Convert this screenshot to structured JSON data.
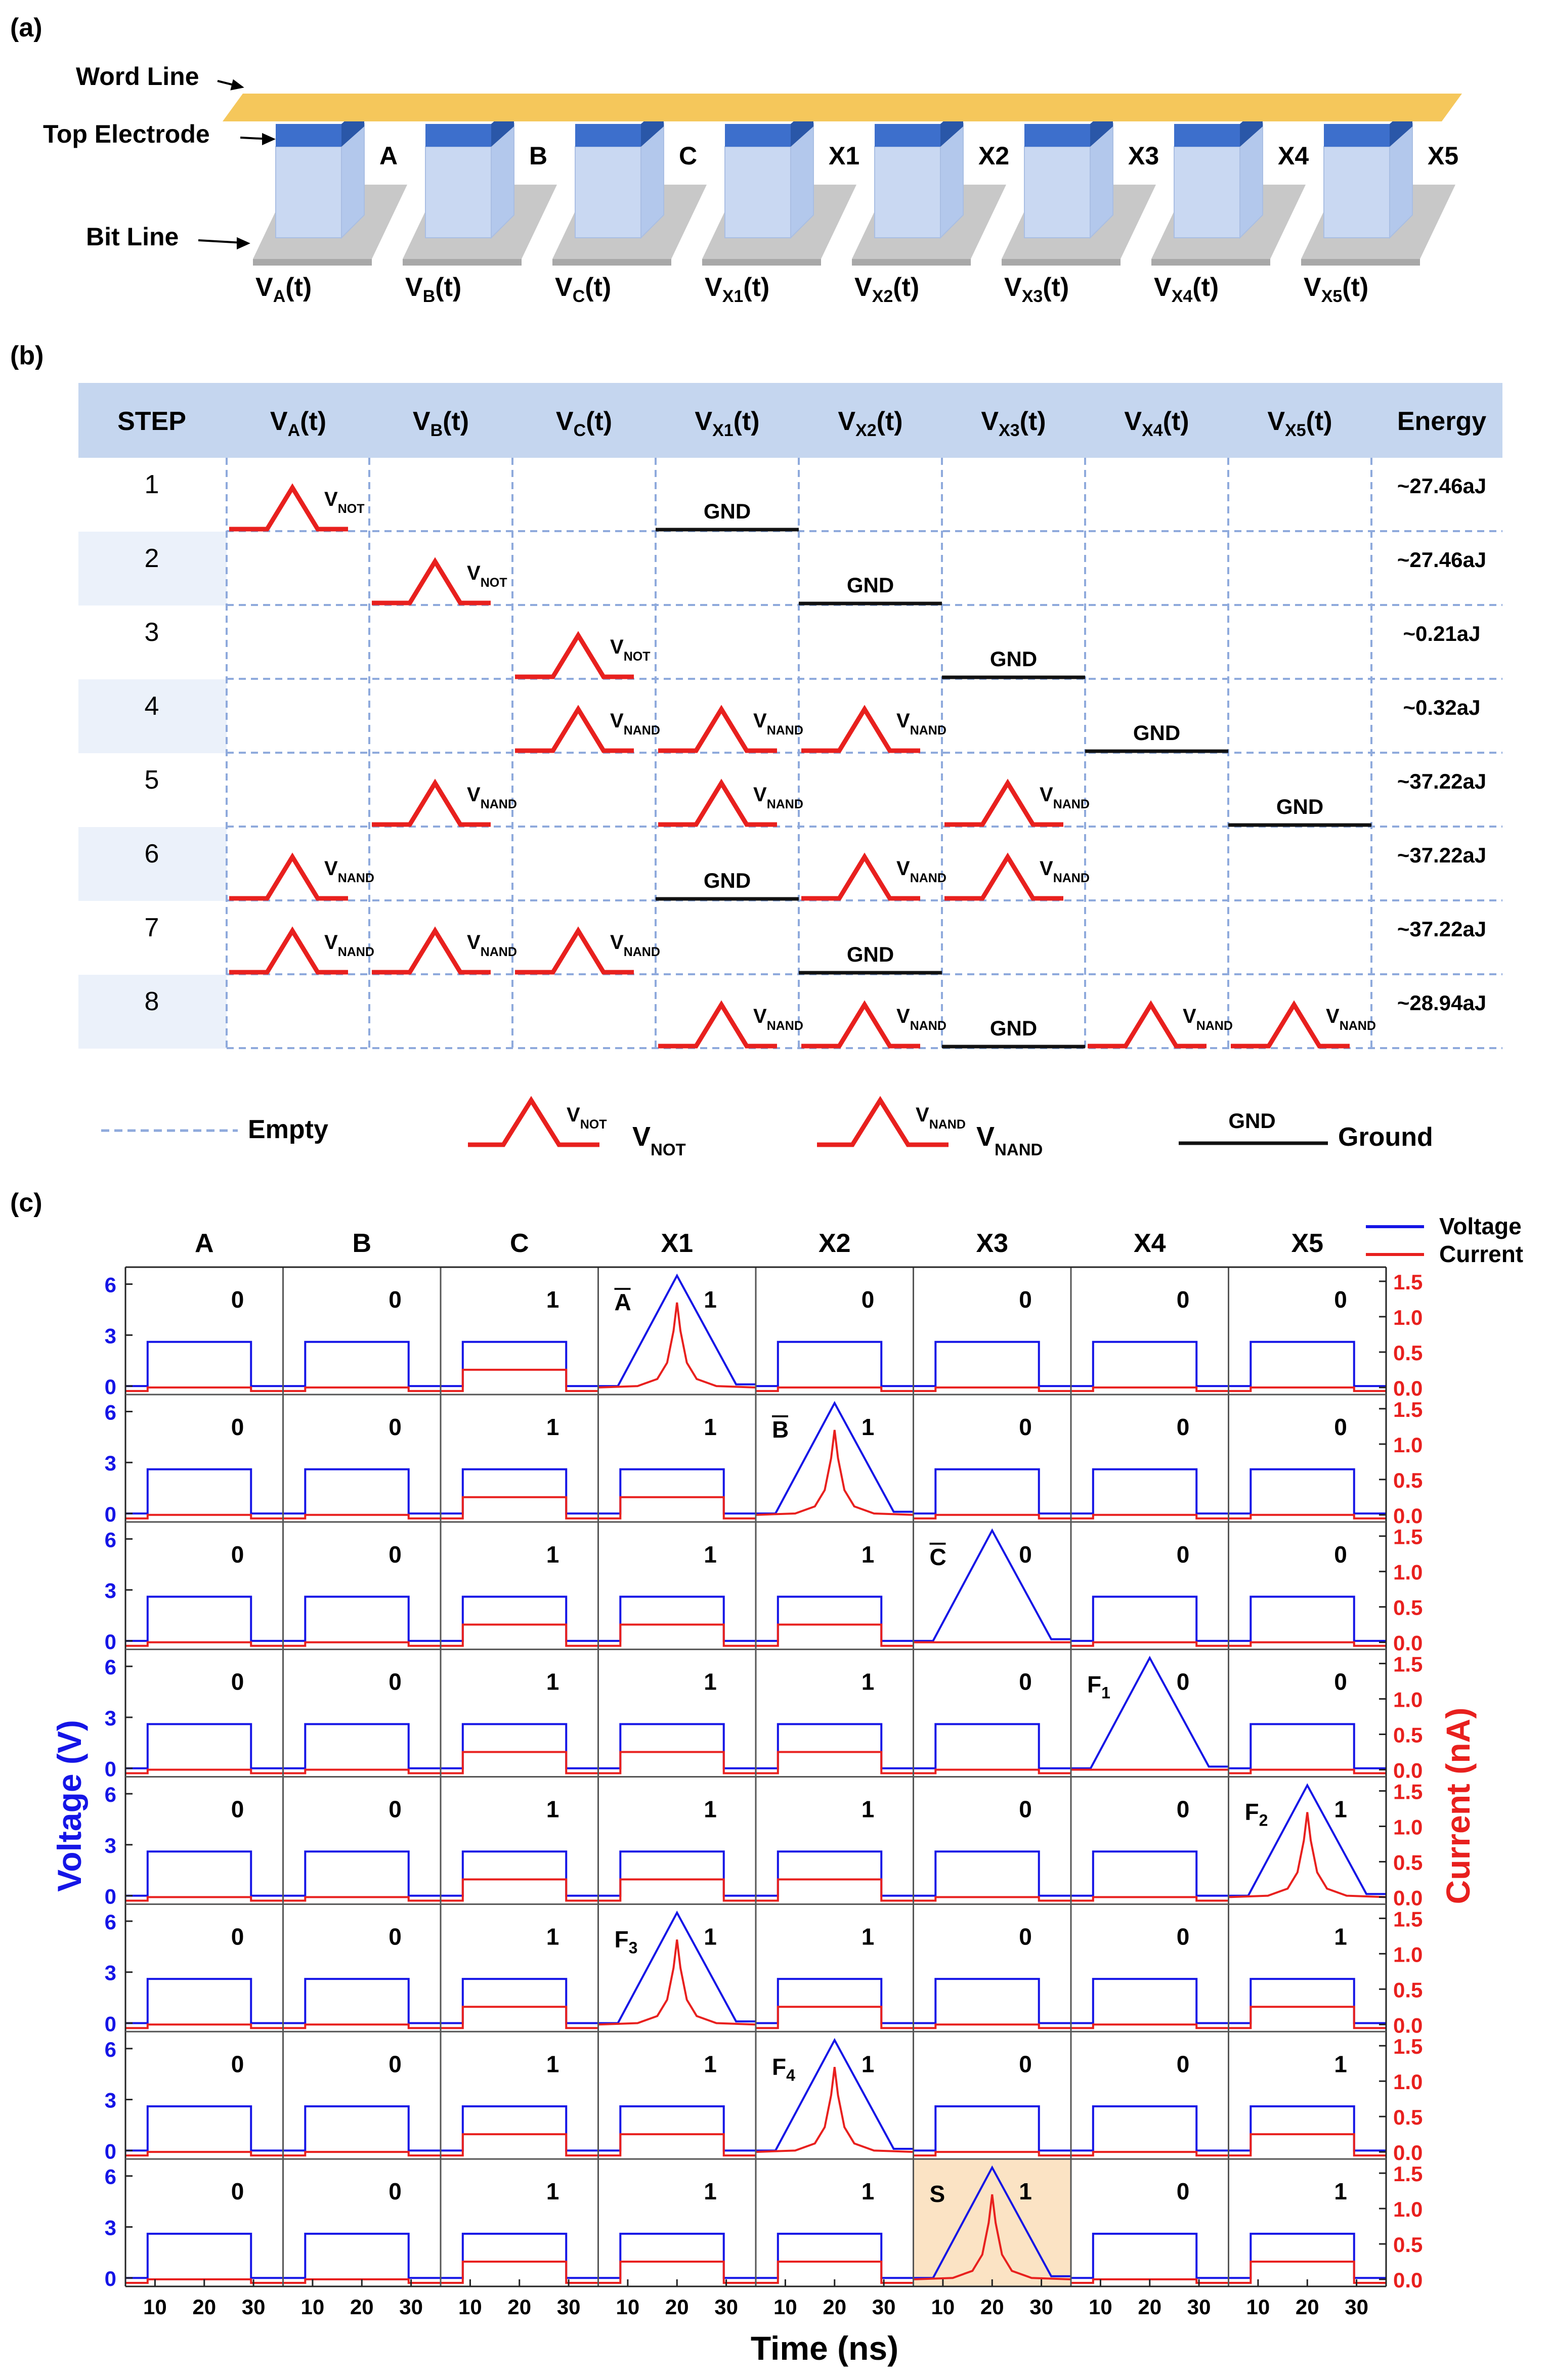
{
  "panel_a": {
    "label": "(a)",
    "word_line_label": "Word Line",
    "top_electrode_label": "Top Electrode",
    "bit_line_label": "Bit Line",
    "cells": [
      {
        "name": "A",
        "sub": "A"
      },
      {
        "name": "B",
        "sub": "B"
      },
      {
        "name": "C",
        "sub": "C"
      },
      {
        "name": "X1",
        "sub": "X1"
      },
      {
        "name": "X2",
        "sub": "X2"
      },
      {
        "name": "X3",
        "sub": "X3"
      },
      {
        "name": "X4",
        "sub": "X4"
      },
      {
        "name": "X5",
        "sub": "X5"
      }
    ],
    "colors": {
      "word_line": "#F5C75B",
      "electrode": "#3D6FCC",
      "cell_body": "#C9D8F2",
      "bit_line": "#C8C8C8"
    }
  },
  "panel_b": {
    "label": "(b)",
    "header_step": "STEP",
    "header_energy": "Energy",
    "columns": [
      "A",
      "B",
      "C",
      "X1",
      "X2",
      "X3",
      "X4",
      "X5"
    ],
    "rows": [
      {
        "step": "1",
        "energy": "~27.46aJ",
        "cells": [
          "NOT",
          "",
          "",
          "GND",
          "",
          "",
          "",
          ""
        ]
      },
      {
        "step": "2",
        "energy": "~27.46aJ",
        "cells": [
          "",
          "NOT",
          "",
          "",
          "GND",
          "",
          "",
          ""
        ]
      },
      {
        "step": "3",
        "energy": "~0.21aJ",
        "cells": [
          "",
          "",
          "NOT",
          "",
          "",
          "GND",
          "",
          ""
        ]
      },
      {
        "step": "4",
        "energy": "~0.32aJ",
        "cells": [
          "",
          "",
          "NAND",
          "NAND",
          "NAND",
          "",
          "GND",
          ""
        ]
      },
      {
        "step": "5",
        "energy": "~37.22aJ",
        "cells": [
          "",
          "NAND",
          "",
          "NAND",
          "",
          "NAND",
          "",
          "GND"
        ]
      },
      {
        "step": "6",
        "energy": "~37.22aJ",
        "cells": [
          "NAND",
          "",
          "",
          "GND",
          "NAND",
          "NAND",
          "",
          ""
        ]
      },
      {
        "step": "7",
        "energy": "~37.22aJ",
        "cells": [
          "NAND",
          "NAND",
          "NAND",
          "",
          "GND",
          "",
          "",
          ""
        ]
      },
      {
        "step": "8",
        "energy": "~28.94aJ",
        "cells": [
          "",
          "",
          "",
          "NAND",
          "NAND",
          "GND",
          "NAND",
          "NAND"
        ]
      }
    ],
    "gnd_text": "GND",
    "legend": {
      "empty": "Empty",
      "not": "NOT",
      "nand": "NAND",
      "ground": "Ground"
    },
    "colors": {
      "header": "#C5D6EF",
      "alt_row": "#EBF1FA",
      "pulse": "#E8201E",
      "dash": "#8FAADC"
    }
  },
  "panel_c": {
    "label": "(c)",
    "columns": [
      "A",
      "B",
      "C",
      "X1",
      "X2",
      "X3",
      "X4",
      "X5"
    ],
    "legend_voltage": "Voltage",
    "legend_current": "Current",
    "ylabel_left": "Voltage (V)",
    "ylabel_right": "Current (nA)",
    "xlabel": "Time (ns)",
    "colors": {
      "voltage": "#1515E6",
      "current": "#E8201E",
      "highlight": "#FBE3C4"
    }
  },
  "chart_data": {
    "type": "line",
    "title": "",
    "xlabel": "Time (ns)",
    "ylabel": "Voltage (V)",
    "ylabel_right": "Current (nA)",
    "x_ticks": [
      10,
      20,
      30
    ],
    "y_ticks_left": [
      0,
      3,
      6
    ],
    "y_ticks_right": [
      0.0,
      0.5,
      1.0,
      1.5
    ],
    "ylim_left": [
      -0.5,
      7
    ],
    "ylim_right": [
      -0.1,
      1.7
    ],
    "xlim": [
      4,
      36
    ],
    "series_names": [
      "Voltage",
      "Current"
    ],
    "columns": [
      "A",
      "B",
      "C",
      "X1",
      "X2",
      "X3",
      "X4",
      "X5"
    ],
    "rows": [
      {
        "step": 1,
        "states": [
          "0",
          "0",
          "1",
          "1",
          "0",
          "0",
          "0",
          "0"
        ],
        "pulse_col": 3,
        "pulse_label": "A",
        "pulse_bar": true,
        "pulse_sub": "",
        "current_spike": true,
        "read_current": [
          "0.0",
          "0.0",
          "0.25",
          "",
          "0.0",
          "0.0",
          "0.0",
          "0.0"
        ]
      },
      {
        "step": 2,
        "states": [
          "0",
          "0",
          "1",
          "1",
          "1",
          "0",
          "0",
          "0"
        ],
        "pulse_col": 4,
        "pulse_label": "B",
        "pulse_bar": true,
        "pulse_sub": "",
        "current_spike": true,
        "read_current": [
          "0.0",
          "0.0",
          "0.25",
          "0.25",
          "",
          "0.0",
          "0.0",
          "0.0"
        ]
      },
      {
        "step": 3,
        "states": [
          "0",
          "0",
          "1",
          "1",
          "1",
          "0",
          "0",
          "0"
        ],
        "pulse_col": 5,
        "pulse_label": "C",
        "pulse_bar": true,
        "pulse_sub": "",
        "current_spike": false,
        "read_current": [
          "0.0",
          "0.0",
          "0.25",
          "0.25",
          "0.25",
          "",
          "0.0",
          "0.0"
        ]
      },
      {
        "step": 4,
        "states": [
          "0",
          "0",
          "1",
          "1",
          "1",
          "0",
          "0",
          "0"
        ],
        "pulse_col": 6,
        "pulse_label": "F",
        "pulse_bar": false,
        "pulse_sub": "1",
        "current_spike": false,
        "read_current": [
          "0.0",
          "0.0",
          "0.25",
          "0.25",
          "0.25",
          "0.0",
          "",
          "0.0"
        ]
      },
      {
        "step": 5,
        "states": [
          "0",
          "0",
          "1",
          "1",
          "1",
          "0",
          "0",
          "1"
        ],
        "pulse_col": 7,
        "pulse_label": "F",
        "pulse_bar": false,
        "pulse_sub": "2",
        "current_spike": true,
        "read_current": [
          "0.0",
          "0.0",
          "0.25",
          "0.25",
          "0.25",
          "0.0",
          "0.0",
          ""
        ]
      },
      {
        "step": 6,
        "states": [
          "0",
          "0",
          "1",
          "1",
          "1",
          "0",
          "0",
          "1"
        ],
        "pulse_col": 3,
        "pulse_label": "F",
        "pulse_bar": false,
        "pulse_sub": "3",
        "current_spike": true,
        "read_current": [
          "0.0",
          "0.0",
          "0.25",
          "",
          "0.25",
          "0.0",
          "0.0",
          "0.25"
        ]
      },
      {
        "step": 7,
        "states": [
          "0",
          "0",
          "1",
          "1",
          "1",
          "0",
          "0",
          "1"
        ],
        "pulse_col": 4,
        "pulse_label": "F",
        "pulse_bar": false,
        "pulse_sub": "4",
        "current_spike": true,
        "read_current": [
          "0.0",
          "0.0",
          "0.25",
          "0.25",
          "",
          "0.0",
          "0.0",
          "0.25"
        ]
      },
      {
        "step": 8,
        "states": [
          "0",
          "0",
          "1",
          "1",
          "1",
          "1",
          "0",
          "1"
        ],
        "pulse_col": 5,
        "pulse_label": "S",
        "pulse_bar": false,
        "pulse_sub": "",
        "current_spike": true,
        "read_current": [
          "0.0",
          "0.0",
          "0.25",
          "0.25",
          "0.25",
          "",
          "0.0",
          "0.25"
        ],
        "highlight_col": 5
      }
    ],
    "read_voltage": 2.6,
    "pulse_peak_voltage": 6.5,
    "spike_peak_current": 1.2
  }
}
